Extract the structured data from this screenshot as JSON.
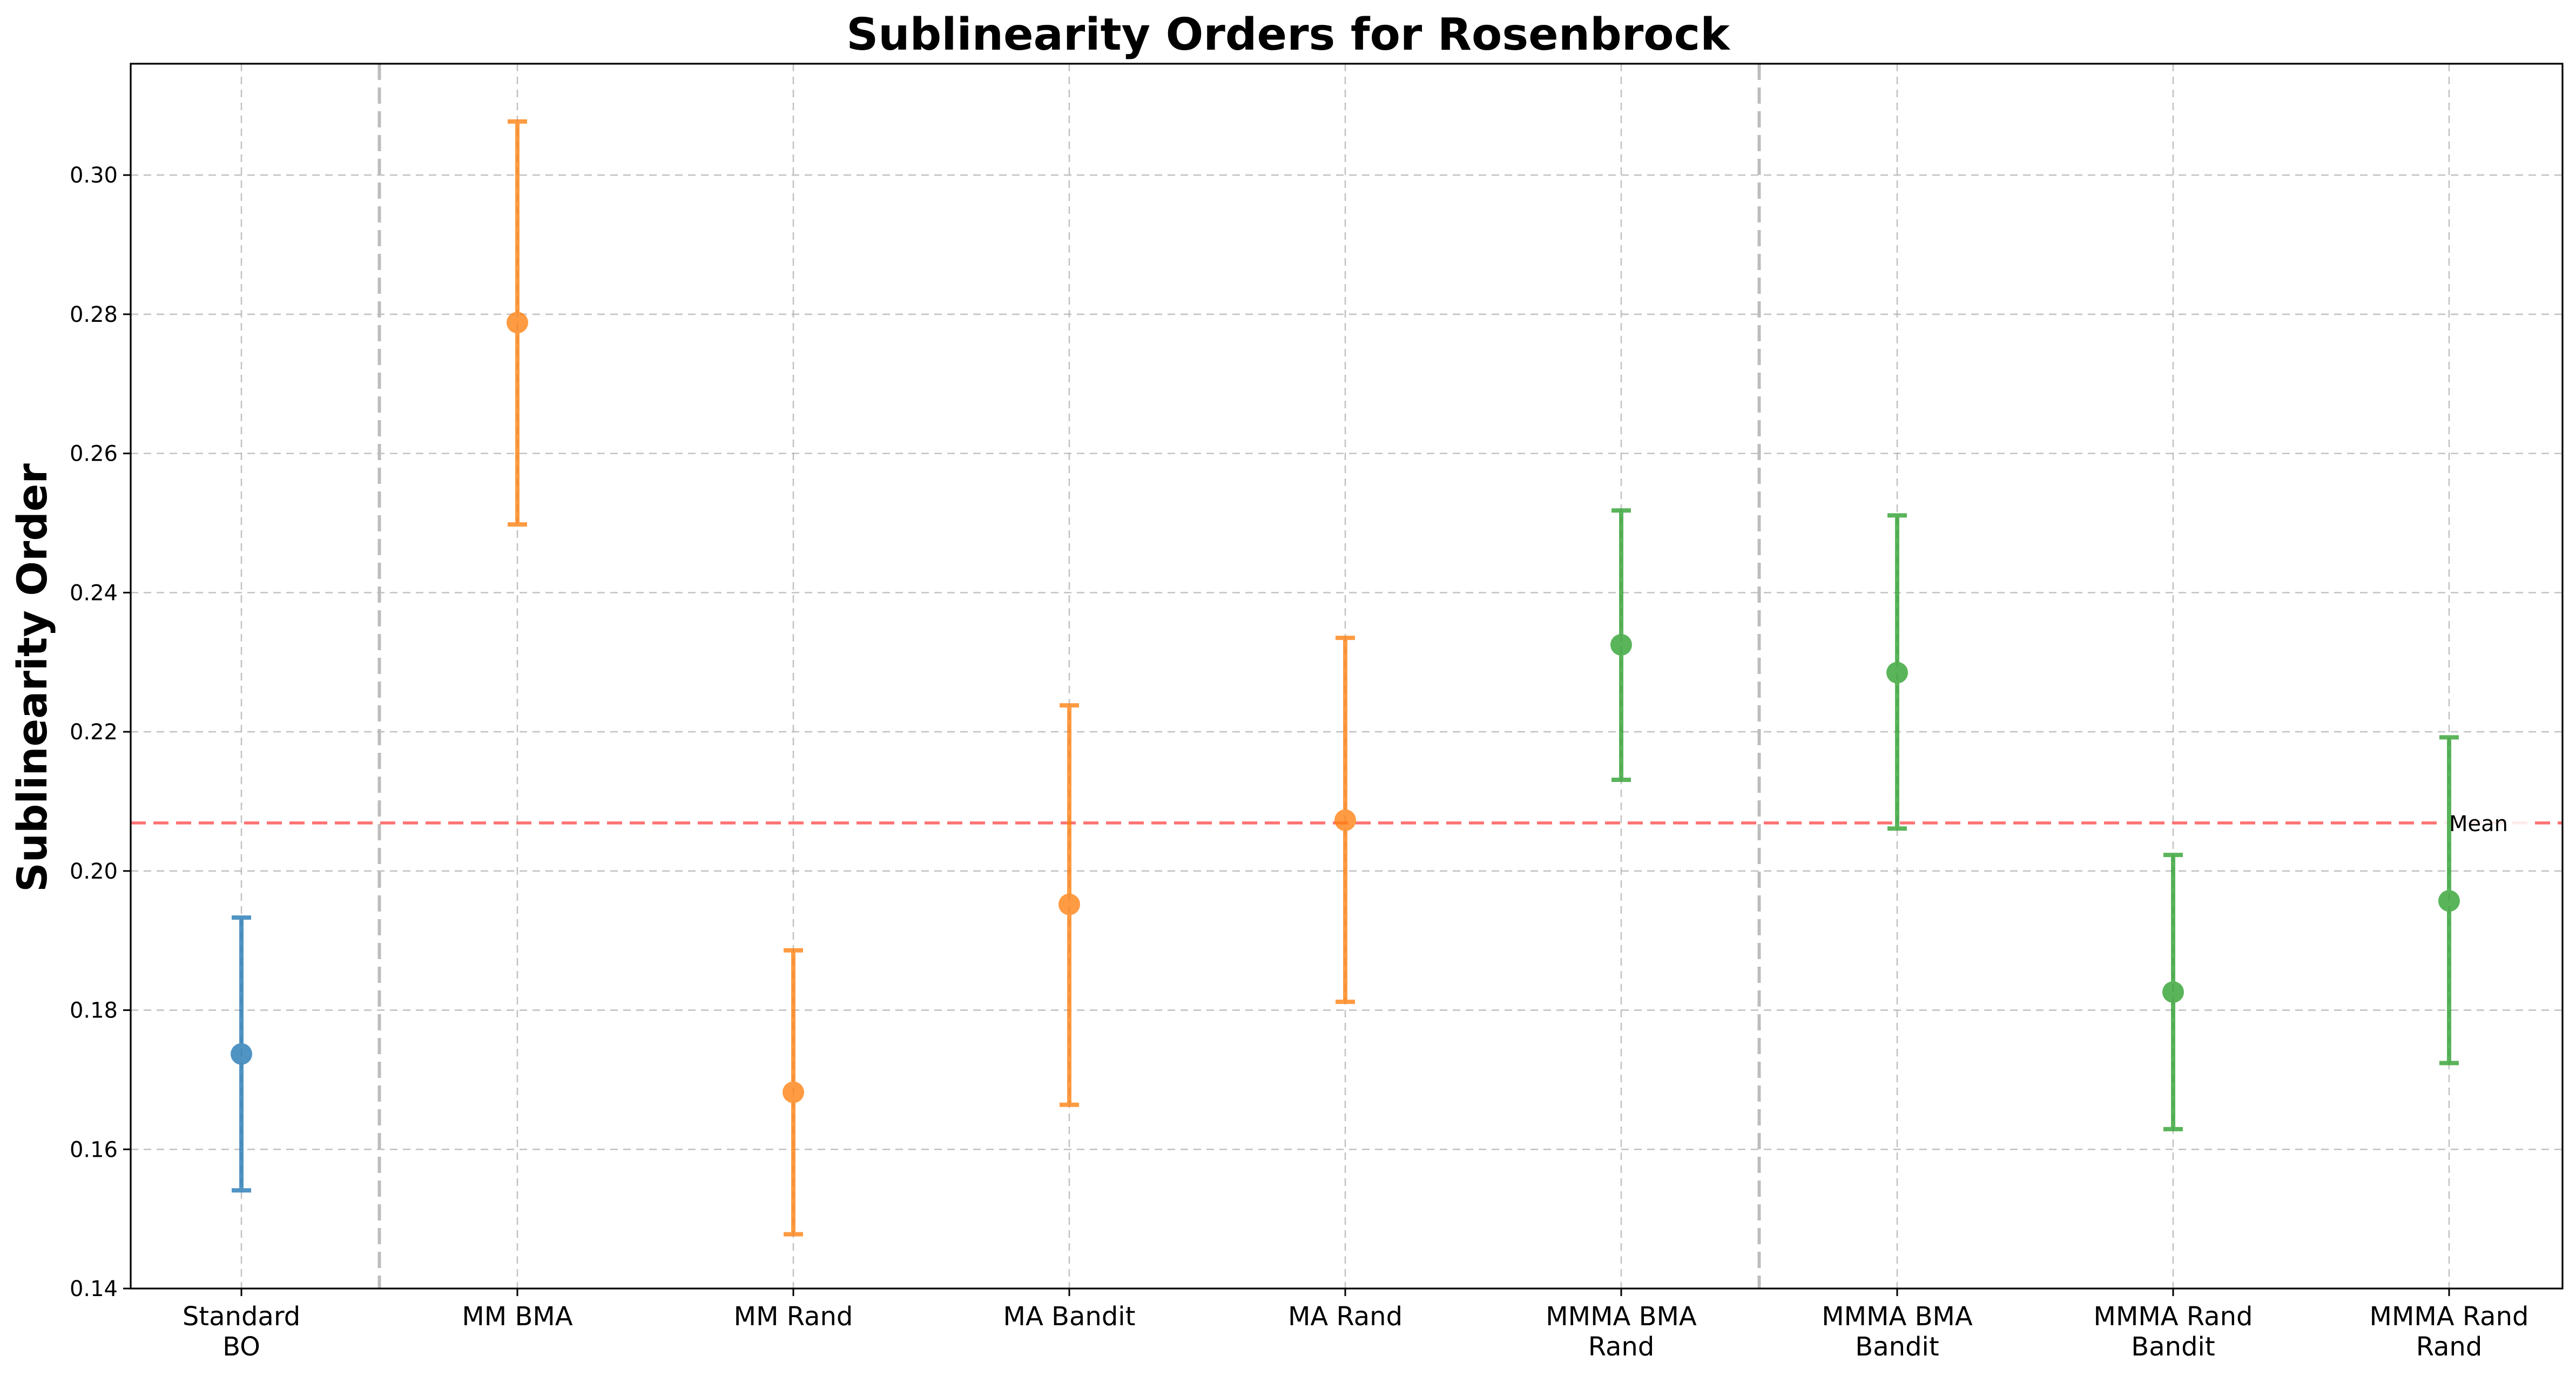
{
  "chart_data": {
    "type": "scatter",
    "title": "Sublinearity Orders for Rosenbrock",
    "ylabel": "Sublinearity Order",
    "xlabel": "",
    "ylim": [
      0.14,
      0.316
    ],
    "yticks": [
      "0.14",
      "0.16",
      "0.18",
      "0.20",
      "0.22",
      "0.24",
      "0.26",
      "0.28",
      "0.30"
    ],
    "grid": true,
    "categories": [
      [
        "Standard",
        "BO"
      ],
      [
        "MM BMA"
      ],
      [
        "MM Rand"
      ],
      [
        "MA Bandit"
      ],
      [
        "MA Rand"
      ],
      [
        "MMMA BMA",
        "Rand"
      ],
      [
        "MMMA BMA",
        "Bandit"
      ],
      [
        "MMMA Rand",
        "Bandit"
      ],
      [
        "MMMA Rand",
        "Rand"
      ]
    ],
    "points": [
      {
        "value": 0.1737,
        "lower": 0.1541,
        "upper": 0.1933,
        "color": "#1f77b4"
      },
      {
        "value": 0.2788,
        "lower": 0.2498,
        "upper": 0.3077,
        "color": "#ff7f0e"
      },
      {
        "value": 0.1682,
        "lower": 0.1478,
        "upper": 0.1886,
        "color": "#ff7f0e"
      },
      {
        "value": 0.1952,
        "lower": 0.1664,
        "upper": 0.2238,
        "color": "#ff7f0e"
      },
      {
        "value": 0.2073,
        "lower": 0.1812,
        "upper": 0.2335,
        "color": "#ff7f0e"
      },
      {
        "value": 0.2325,
        "lower": 0.2131,
        "upper": 0.2518,
        "color": "#2ca02c"
      },
      {
        "value": 0.2285,
        "lower": 0.2061,
        "upper": 0.2511,
        "color": "#2ca02c"
      },
      {
        "value": 0.1826,
        "lower": 0.1629,
        "upper": 0.2023,
        "color": "#2ca02c"
      },
      {
        "value": 0.1957,
        "lower": 0.1724,
        "upper": 0.2192,
        "color": "#2ca02c"
      }
    ],
    "group_separators_after_index": [
      0,
      5
    ],
    "mean": {
      "value": 0.2069,
      "label": "Mean",
      "color": "#ff6b6b"
    }
  }
}
